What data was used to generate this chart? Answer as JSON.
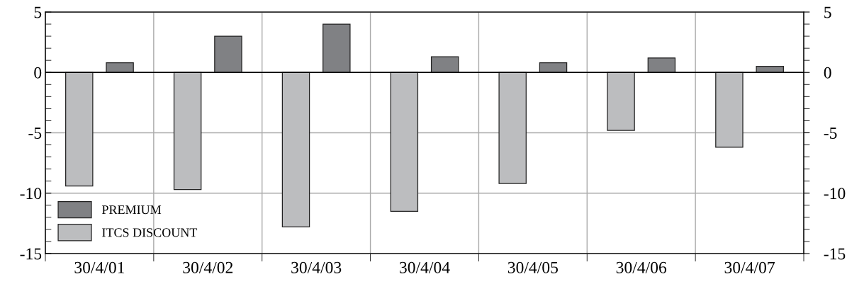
{
  "chart_data": {
    "type": "bar",
    "categories": [
      "30/4/01",
      "30/4/02",
      "30/4/03",
      "30/4/04",
      "30/4/05",
      "30/4/06",
      "30/4/07"
    ],
    "series": [
      {
        "name": "PREMIUM",
        "color": "#808184",
        "values": [
          0.8,
          3.0,
          4.0,
          1.3,
          0.8,
          1.2,
          0.5
        ]
      },
      {
        "name": "ITCS DISCOUNT",
        "color": "#bcbdbf",
        "values": [
          -9.4,
          -9.7,
          -12.8,
          -11.5,
          -9.2,
          -4.8,
          -6.2
        ]
      }
    ],
    "ylim": [
      -15,
      5
    ],
    "yticks": [
      -15,
      -10,
      -5,
      0,
      5
    ],
    "y2lim": [
      -15,
      5
    ],
    "y2ticks": [
      -15,
      -10,
      -5,
      0,
      5
    ],
    "grid": true,
    "legend": "bottom left"
  }
}
